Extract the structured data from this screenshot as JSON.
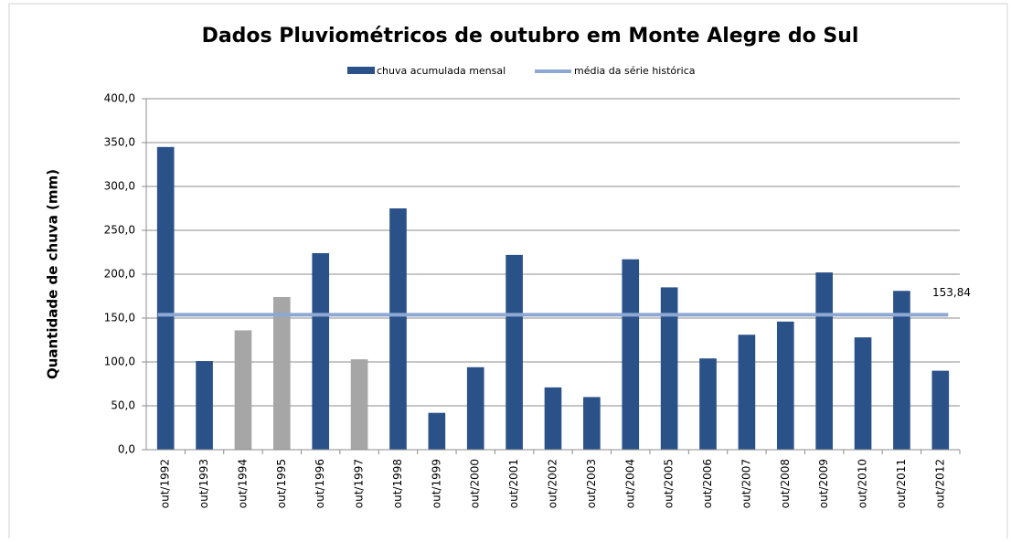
{
  "chart_data": {
    "type": "bar",
    "title": "Dados Pluviométricos de outubro em Monte Alegre do Sul",
    "y_label": "Quantidade de chuva (mm)",
    "categories": [
      "out/1992",
      "out/1993",
      "out/1994",
      "out/1995",
      "out/1996",
      "out/1997",
      "out/1998",
      "out/1999",
      "out/2000",
      "out/2001",
      "out/2002",
      "out/2003",
      "out/2004",
      "out/2005",
      "out/2006",
      "out/2007",
      "out/2008",
      "out/2009",
      "out/2010",
      "out/2011",
      "out/2012"
    ],
    "series": [
      {
        "name": "chuva acumulada  mensal",
        "color": "#2a5289",
        "colors": [
          "#2a5289",
          "#2a5289",
          "#a6a6a6",
          "#a6a6a6",
          "#2a5289",
          "#a6a6a6",
          "#2a5289",
          "#2a5289",
          "#2a5289",
          "#2a5289",
          "#2a5289",
          "#2a5289",
          "#2a5289",
          "#2a5289",
          "#2a5289",
          "#2a5289",
          "#2a5289",
          "#2a5289",
          "#2a5289",
          "#2a5289",
          "#2a5289"
        ],
        "values": [
          345,
          101,
          136,
          174,
          224,
          103,
          275,
          42,
          94,
          222,
          71,
          60,
          217,
          185,
          104,
          131,
          146,
          202,
          128,
          181,
          90
        ]
      }
    ],
    "mean_line": {
      "name": "média da série histórica",
      "color": "#8ea8d4",
      "value": 153.84,
      "label": "153,84"
    },
    "ylim": [
      0,
      400
    ],
    "yticks": [
      {
        "value": 0,
        "label": "0,0"
      },
      {
        "value": 50,
        "label": "50,0"
      },
      {
        "value": 100,
        "label": "100,0"
      },
      {
        "value": 150,
        "label": "150,0"
      },
      {
        "value": 200,
        "label": "200,0"
      },
      {
        "value": 250,
        "label": "250,0"
      },
      {
        "value": 300,
        "label": "300,0"
      },
      {
        "value": 350,
        "label": "350,0"
      },
      {
        "value": 400,
        "label": "400,0"
      }
    ],
    "grid": true
  }
}
